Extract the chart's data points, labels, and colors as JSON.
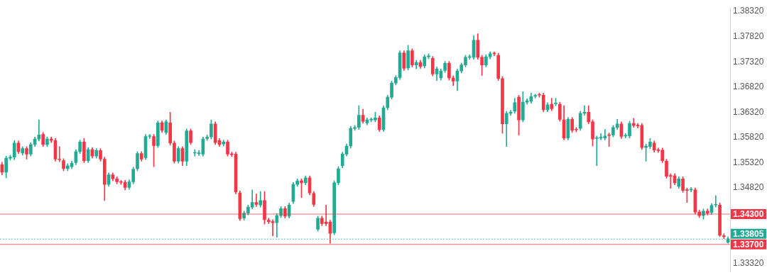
{
  "chart_data": {
    "type": "candlestick",
    "categories": [
      null,
      null,
      null,
      null,
      null,
      null,
      null,
      null,
      null,
      null,
      null,
      null,
      null,
      null,
      null,
      null,
      null,
      null,
      null,
      null,
      null,
      null,
      null,
      null,
      null,
      null,
      null,
      null,
      null,
      null,
      null,
      null,
      null,
      null,
      null,
      null,
      null,
      null,
      null,
      null,
      null,
      null,
      null,
      null,
      null,
      null,
      null,
      null,
      null,
      null,
      null,
      null,
      null,
      null,
      null,
      null,
      null,
      null,
      null,
      null,
      null,
      null,
      null,
      null,
      null,
      null,
      null,
      null,
      null,
      null,
      null,
      null,
      null,
      null,
      null,
      null,
      null,
      null,
      null,
      null,
      null,
      null,
      null,
      null,
      null,
      null,
      null,
      null,
      null,
      null,
      null,
      null,
      null,
      null,
      null,
      null,
      null,
      null,
      null,
      null,
      null,
      null,
      null,
      null,
      null,
      null,
      null,
      null,
      null,
      null,
      null,
      null,
      null,
      null,
      null,
      null,
      null,
      null,
      null,
      null,
      null,
      null,
      null,
      null,
      null,
      null,
      null,
      null,
      null,
      null,
      null,
      null,
      null,
      null,
      null,
      null,
      null,
      null,
      null,
      null,
      null,
      null,
      null,
      null,
      null,
      null,
      null,
      null,
      null,
      null,
      null,
      null,
      null,
      null,
      null,
      null,
      null,
      null,
      null,
      null,
      null,
      null,
      null,
      null,
      null,
      null,
      null,
      null,
      null,
      null,
      null,
      null,
      null,
      null,
      null,
      null,
      null,
      null
    ],
    "ohlc": [
      [
        1.3528,
        1.3533,
        1.3508,
        1.3513
      ],
      [
        1.3513,
        1.3545,
        1.3502,
        1.3541
      ],
      [
        1.3541,
        1.3547,
        1.3537,
        1.3543
      ],
      [
        1.3543,
        1.3576,
        1.3538,
        1.3571
      ],
      [
        1.3571,
        1.3575,
        1.355,
        1.3554
      ],
      [
        1.3551,
        1.3564,
        1.3547,
        1.356
      ],
      [
        1.356,
        1.3564,
        1.3539,
        1.3549
      ],
      [
        1.3549,
        1.3572,
        1.3545,
        1.3568
      ],
      [
        1.3568,
        1.3583,
        1.3564,
        1.3579
      ],
      [
        1.3579,
        1.3617,
        1.3575,
        1.3587
      ],
      [
        1.3588,
        1.3592,
        1.3564,
        1.3568
      ],
      [
        1.3568,
        1.3583,
        1.3564,
        1.3579
      ],
      [
        1.3579,
        1.3583,
        1.3572,
        1.3576
      ],
      [
        1.3576,
        1.358,
        1.3535,
        1.3539
      ],
      [
        1.3539,
        1.3564,
        1.3534,
        1.3538
      ],
      [
        1.3536,
        1.354,
        1.3516,
        1.352
      ],
      [
        1.352,
        1.353,
        1.3516,
        1.3526
      ],
      [
        1.3524,
        1.3535,
        1.352,
        1.3531
      ],
      [
        1.3532,
        1.3558,
        1.3528,
        1.3554
      ],
      [
        1.3554,
        1.3577,
        1.355,
        1.3573
      ],
      [
        1.3573,
        1.358,
        1.3532,
        1.3536
      ],
      [
        1.3536,
        1.3562,
        1.3532,
        1.3558
      ],
      [
        1.3558,
        1.3562,
        1.3541,
        1.3545
      ],
      [
        1.3545,
        1.356,
        1.3541,
        1.3556
      ],
      [
        1.3556,
        1.356,
        1.3535,
        1.3539
      ],
      [
        1.3539,
        1.3543,
        1.3457,
        1.3489
      ],
      [
        1.3489,
        1.3512,
        1.3485,
        1.3508
      ],
      [
        1.3508,
        1.3512,
        1.3496,
        1.35
      ],
      [
        1.35,
        1.3504,
        1.349,
        1.3494
      ],
      [
        1.3494,
        1.3497,
        1.3489,
        1.3493
      ],
      [
        1.3493,
        1.3497,
        1.3478,
        1.3483
      ],
      [
        1.3483,
        1.3498,
        1.3479,
        1.3494
      ],
      [
        1.3494,
        1.3523,
        1.349,
        1.3519
      ],
      [
        1.352,
        1.3554,
        1.3516,
        1.355
      ],
      [
        1.355,
        1.3554,
        1.3535,
        1.3539
      ],
      [
        1.3542,
        1.3588,
        1.3538,
        1.3584
      ],
      [
        1.3584,
        1.3588,
        1.358,
        1.3585
      ],
      [
        1.3584,
        1.3588,
        1.3524,
        1.3566
      ],
      [
        1.3566,
        1.3615,
        1.3562,
        1.3611
      ],
      [
        1.3611,
        1.3615,
        1.3592,
        1.3596
      ],
      [
        1.3592,
        1.3617,
        1.3588,
        1.3613
      ],
      [
        1.3611,
        1.3632,
        1.3567,
        1.3571
      ],
      [
        1.3571,
        1.3575,
        1.3531,
        1.3535
      ],
      [
        1.3535,
        1.3564,
        1.3531,
        1.356
      ],
      [
        1.356,
        1.3564,
        1.3526,
        1.3535
      ],
      [
        1.3535,
        1.3599,
        1.3526,
        1.3595
      ],
      [
        1.3595,
        1.3599,
        1.3568,
        1.3572
      ],
      [
        1.3551,
        1.3558,
        1.3545,
        1.3552
      ],
      [
        1.355,
        1.3556,
        1.3546,
        1.3551
      ],
      [
        1.3549,
        1.3583,
        1.3545,
        1.3579
      ],
      [
        1.358,
        1.3587,
        1.3576,
        1.3583
      ],
      [
        1.3583,
        1.3617,
        1.3579,
        1.3609
      ],
      [
        1.3609,
        1.3613,
        1.3568,
        1.3572
      ],
      [
        1.3576,
        1.358,
        1.3564,
        1.3568
      ],
      [
        1.3569,
        1.3577,
        1.3565,
        1.3573
      ],
      [
        1.3573,
        1.3577,
        1.3545,
        1.3549
      ],
      [
        1.3549,
        1.3553,
        1.3544,
        1.3548
      ],
      [
        1.3549,
        1.3553,
        1.347,
        1.3474
      ],
      [
        1.3472,
        1.3476,
        1.3417,
        1.3421
      ],
      [
        1.3422,
        1.3436,
        1.3418,
        1.3432
      ],
      [
        1.3432,
        1.3448,
        1.3428,
        1.3444
      ],
      [
        1.3444,
        1.3478,
        1.344,
        1.3453
      ],
      [
        1.3453,
        1.347,
        1.3445,
        1.3449
      ],
      [
        1.3448,
        1.3475,
        1.3444,
        1.3457
      ],
      [
        1.3457,
        1.3475,
        1.341,
        1.3419
      ],
      [
        1.3418,
        1.3422,
        1.3411,
        1.3415
      ],
      [
        1.3415,
        1.3419,
        1.3387,
        1.3413
      ],
      [
        1.3413,
        1.3431,
        1.3384,
        1.3427
      ],
      [
        1.3427,
        1.3445,
        1.3423,
        1.3441
      ],
      [
        1.3441,
        1.3445,
        1.3422,
        1.3426
      ],
      [
        1.3426,
        1.3452,
        1.3422,
        1.3448
      ],
      [
        1.3455,
        1.3493,
        1.3451,
        1.3489
      ],
      [
        1.3489,
        1.35,
        1.3485,
        1.3496
      ],
      [
        1.3496,
        1.35,
        1.3463,
        1.3492
      ],
      [
        1.3492,
        1.3506,
        1.3488,
        1.3502
      ],
      [
        1.3502,
        1.3506,
        1.3468,
        1.3472
      ],
      [
        1.3471,
        1.3475,
        1.3445,
        1.3449
      ],
      [
        1.34,
        1.3426,
        1.3396,
        1.3422
      ],
      [
        1.3422,
        1.3426,
        1.3407,
        1.3411
      ],
      [
        1.3414,
        1.3448,
        1.3407,
        1.3411
      ],
      [
        1.3414,
        1.3418,
        1.3372,
        1.3392
      ],
      [
        1.3393,
        1.3496,
        1.3389,
        1.3492
      ],
      [
        1.3492,
        1.3524,
        1.3488,
        1.352
      ],
      [
        1.3526,
        1.3553,
        1.3522,
        1.3549
      ],
      [
        1.3549,
        1.3569,
        1.3545,
        1.3565
      ],
      [
        1.3565,
        1.3604,
        1.3561,
        1.36
      ],
      [
        1.36,
        1.3606,
        1.3596,
        1.3602
      ],
      [
        1.3602,
        1.3645,
        1.3598,
        1.3626
      ],
      [
        1.3626,
        1.3638,
        1.361,
        1.3614
      ],
      [
        1.3611,
        1.3621,
        1.3607,
        1.3617
      ],
      [
        1.3617,
        1.3621,
        1.3613,
        1.3618
      ],
      [
        1.3617,
        1.3632,
        1.3613,
        1.3621
      ],
      [
        1.3621,
        1.3625,
        1.3594,
        1.3598
      ],
      [
        1.3598,
        1.3645,
        1.3594,
        1.3641
      ],
      [
        1.3641,
        1.3666,
        1.3637,
        1.3662
      ],
      [
        1.3662,
        1.3694,
        1.3658,
        1.369
      ],
      [
        1.369,
        1.3705,
        1.3686,
        1.3701
      ],
      [
        1.3701,
        1.3754,
        1.3697,
        1.375
      ],
      [
        1.375,
        1.3754,
        1.3715,
        1.3719
      ],
      [
        1.372,
        1.3765,
        1.3716,
        1.3754
      ],
      [
        1.3754,
        1.3758,
        1.3722,
        1.3726
      ],
      [
        1.3726,
        1.3735,
        1.3718,
        1.3731
      ],
      [
        1.3731,
        1.3735,
        1.3719,
        1.3723
      ],
      [
        1.3724,
        1.3746,
        1.372,
        1.3742
      ],
      [
        1.3742,
        1.3748,
        1.3738,
        1.3744
      ],
      [
        1.3739,
        1.3743,
        1.3704,
        1.3708
      ],
      [
        1.3708,
        1.3722,
        1.3695,
        1.3718
      ],
      [
        1.37,
        1.3718,
        1.3696,
        1.3714
      ],
      [
        1.3715,
        1.3733,
        1.3711,
        1.3729
      ],
      [
        1.3729,
        1.3733,
        1.3696,
        1.37
      ],
      [
        1.37,
        1.3704,
        1.3685,
        1.3694
      ],
      [
        1.3694,
        1.3718,
        1.3675,
        1.3714
      ],
      [
        1.3714,
        1.373,
        1.371,
        1.3726
      ],
      [
        1.3726,
        1.3745,
        1.3722,
        1.3741
      ],
      [
        1.3741,
        1.3746,
        1.3737,
        1.3742
      ],
      [
        1.3741,
        1.3784,
        1.3737,
        1.3775
      ],
      [
        1.3775,
        1.3788,
        1.3737,
        1.3741
      ],
      [
        1.3741,
        1.3745,
        1.3705,
        1.3726
      ],
      [
        1.3726,
        1.3746,
        1.3722,
        1.3742
      ],
      [
        1.3742,
        1.3752,
        1.3738,
        1.3748
      ],
      [
        1.3749,
        1.3752,
        1.3744,
        1.3748
      ],
      [
        1.3745,
        1.3749,
        1.3695,
        1.3699
      ],
      [
        1.3699,
        1.3703,
        1.359,
        1.3609
      ],
      [
        1.3609,
        1.3634,
        1.3564,
        1.363
      ],
      [
        1.363,
        1.3636,
        1.3626,
        1.3632
      ],
      [
        1.3634,
        1.366,
        1.363,
        1.3651
      ],
      [
        1.3662,
        1.3666,
        1.3587,
        1.3617
      ],
      [
        1.3617,
        1.3673,
        1.3613,
        1.3652
      ],
      [
        1.3652,
        1.3659,
        1.3648,
        1.3655
      ],
      [
        1.3654,
        1.367,
        1.365,
        1.3663
      ],
      [
        1.3664,
        1.3668,
        1.366,
        1.3665
      ],
      [
        1.3667,
        1.367,
        1.3662,
        1.3666
      ],
      [
        1.3666,
        1.367,
        1.3633,
        1.3637
      ],
      [
        1.3637,
        1.3651,
        1.3633,
        1.3647
      ],
      [
        1.3648,
        1.366,
        1.3635,
        1.3639
      ],
      [
        1.3649,
        1.366,
        1.3645,
        1.365
      ],
      [
        1.3648,
        1.3652,
        1.3614,
        1.3618
      ],
      [
        1.3617,
        1.3645,
        1.3577,
        1.3581
      ],
      [
        1.3581,
        1.3622,
        1.3577,
        1.3618
      ],
      [
        1.3618,
        1.3622,
        1.3592,
        1.3596
      ],
      [
        1.3598,
        1.3602,
        1.3593,
        1.3597
      ],
      [
        1.36,
        1.3634,
        1.3596,
        1.363
      ],
      [
        1.363,
        1.3645,
        1.3626,
        1.3632
      ],
      [
        1.3632,
        1.3645,
        1.3609,
        1.3613
      ],
      [
        1.3613,
        1.3617,
        1.3565,
        1.3579
      ],
      [
        1.358,
        1.3585,
        1.3526,
        1.3581
      ],
      [
        1.3581,
        1.359,
        1.3577,
        1.3582
      ],
      [
        1.3581,
        1.3598,
        1.3577,
        1.3585
      ],
      [
        1.3587,
        1.3591,
        1.3564,
        1.3586
      ],
      [
        1.3587,
        1.3606,
        1.3583,
        1.3602
      ],
      [
        1.3602,
        1.3618,
        1.3598,
        1.3609
      ],
      [
        1.3609,
        1.3613,
        1.358,
        1.3584
      ],
      [
        1.3585,
        1.359,
        1.3581,
        1.3586
      ],
      [
        1.3585,
        1.3614,
        1.3581,
        1.361
      ],
      [
        1.361,
        1.362,
        1.3602,
        1.3606
      ],
      [
        1.3606,
        1.361,
        1.3601,
        1.3605
      ],
      [
        1.3606,
        1.361,
        1.3558,
        1.3562
      ],
      [
        1.3562,
        1.3569,
        1.3535,
        1.3565
      ],
      [
        1.3564,
        1.358,
        1.356,
        1.3573
      ],
      [
        1.3571,
        1.3575,
        1.3553,
        1.3557
      ],
      [
        1.3557,
        1.3561,
        1.3552,
        1.3556
      ],
      [
        1.3557,
        1.3561,
        1.3532,
        1.3536
      ],
      [
        1.3535,
        1.3539,
        1.3501,
        1.3505
      ],
      [
        1.3506,
        1.351,
        1.3481,
        1.3505
      ],
      [
        1.3506,
        1.351,
        1.3488,
        1.3492
      ],
      [
        1.3485,
        1.3504,
        1.3481,
        1.35
      ],
      [
        1.35,
        1.3504,
        1.3473,
        1.3477
      ],
      [
        1.3478,
        1.3482,
        1.3453,
        1.3477
      ],
      [
        1.3478,
        1.3483,
        1.3474,
        1.3479
      ],
      [
        1.3478,
        1.3482,
        1.343,
        1.3434
      ],
      [
        1.3434,
        1.3438,
        1.3423,
        1.3427
      ],
      [
        1.3427,
        1.344,
        1.342,
        1.3436
      ],
      [
        1.3436,
        1.344,
        1.3428,
        1.3432
      ],
      [
        1.3433,
        1.3451,
        1.3429,
        1.3447
      ],
      [
        1.3448,
        1.3467,
        1.3444,
        1.3449
      ],
      [
        1.3448,
        1.3452,
        1.3385,
        1.3388
      ],
      [
        1.3387,
        1.3391,
        1.3381,
        1.3385
      ],
      [
        1.3374,
        1.3385,
        1.3372,
        1.3381
      ]
    ],
    "colors": [
      "#f23645",
      "#22ab94",
      "#22ab94",
      "#22ab94",
      "#f23645",
      "#22ab94",
      "#f23645",
      "#22ab94",
      "#22ab94",
      "#22ab94",
      "#f23645",
      "#22ab94",
      "#f23645",
      "#f23645",
      "#f23645",
      "#f23645",
      "#22ab94",
      "#22ab94",
      "#22ab94",
      "#22ab94",
      "#f23645",
      "#22ab94",
      "#f23645",
      "#22ab94",
      "#f23645",
      "#f23645",
      "#22ab94",
      "#f23645",
      "#f23645",
      "#f23645",
      "#f23645",
      "#22ab94",
      "#22ab94",
      "#22ab94",
      "#f23645",
      "#22ab94",
      "#22ab94",
      "#f23645",
      "#22ab94",
      "#f23645",
      "#22ab94",
      "#f23645",
      "#f23645",
      "#22ab94",
      "#f23645",
      "#22ab94",
      "#f23645",
      "#22ab94",
      "#22ab94",
      "#22ab94",
      "#22ab94",
      "#22ab94",
      "#f23645",
      "#f23645",
      "#22ab94",
      "#f23645",
      "#f23645",
      "#f23645",
      "#f23645",
      "#22ab94",
      "#22ab94",
      "#22ab94",
      "#f23645",
      "#22ab94",
      "#f23645",
      "#f23645",
      "#f23645",
      "#22ab94",
      "#22ab94",
      "#f23645",
      "#22ab94",
      "#22ab94",
      "#22ab94",
      "#f23645",
      "#22ab94",
      "#f23645",
      "#f23645",
      "#22ab94",
      "#f23645",
      "#f23645",
      "#f23645",
      "#22ab94",
      "#22ab94",
      "#22ab94",
      "#22ab94",
      "#22ab94",
      "#22ab94",
      "#22ab94",
      "#f23645",
      "#22ab94",
      "#22ab94",
      "#22ab94",
      "#f23645",
      "#22ab94",
      "#22ab94",
      "#22ab94",
      "#22ab94",
      "#22ab94",
      "#f23645",
      "#22ab94",
      "#f23645",
      "#22ab94",
      "#f23645",
      "#22ab94",
      "#22ab94",
      "#f23645",
      "#22ab94",
      "#22ab94",
      "#22ab94",
      "#f23645",
      "#f23645",
      "#22ab94",
      "#22ab94",
      "#22ab94",
      "#22ab94",
      "#22ab94",
      "#f23645",
      "#f23645",
      "#22ab94",
      "#22ab94",
      "#f23645",
      "#f23645",
      "#f23645",
      "#22ab94",
      "#22ab94",
      "#22ab94",
      "#f23645",
      "#22ab94",
      "#22ab94",
      "#22ab94",
      "#22ab94",
      "#f23645",
      "#f23645",
      "#22ab94",
      "#f23645",
      "#22ab94",
      "#f23645",
      "#f23645",
      "#22ab94",
      "#f23645",
      "#f23645",
      "#22ab94",
      "#22ab94",
      "#f23645",
      "#f23645",
      "#22ab94",
      "#22ab94",
      "#22ab94",
      "#f23645",
      "#22ab94",
      "#22ab94",
      "#f23645",
      "#22ab94",
      "#22ab94",
      "#f23645",
      "#f23645",
      "#f23645",
      "#22ab94",
      "#22ab94",
      "#f23645",
      "#f23645",
      "#f23645",
      "#f23645",
      "#f23645",
      "#f23645",
      "#22ab94",
      "#f23645",
      "#f23645",
      "#22ab94",
      "#f23645",
      "#f23645",
      "#22ab94",
      "#f23645",
      "#22ab94",
      "#22ab94",
      "#f23645",
      "#f23645",
      "#22ab94"
    ],
    "ylim": [
      1.3315,
      1.3839
    ],
    "yticks": [
      {
        "value": 1.3832,
        "label": "1.38320"
      },
      {
        "value": 1.3782,
        "label": "1.37820"
      },
      {
        "value": 1.3732,
        "label": "1.37320"
      },
      {
        "value": 1.3682,
        "label": "1.36820"
      },
      {
        "value": 1.3632,
        "label": "1.36320"
      },
      {
        "value": 1.3582,
        "label": "1.35820"
      },
      {
        "value": 1.3532,
        "label": "1.35320"
      },
      {
        "value": 1.3482,
        "label": "1.34820"
      },
      {
        "value": 1.3332,
        "label": "1.33320"
      }
    ],
    "ref_lines": [
      {
        "axis": "y",
        "value": 1.343,
        "label": "1.34300",
        "color": "#f23645"
      },
      {
        "axis": "y",
        "value": 1.33805,
        "label": "1.33805",
        "color": "#22ab94",
        "line_style": "dotted"
      },
      {
        "axis": "y",
        "value": 1.337,
        "label": "1.33700",
        "color": "#f23645"
      }
    ],
    "tick_labels": "y"
  }
}
